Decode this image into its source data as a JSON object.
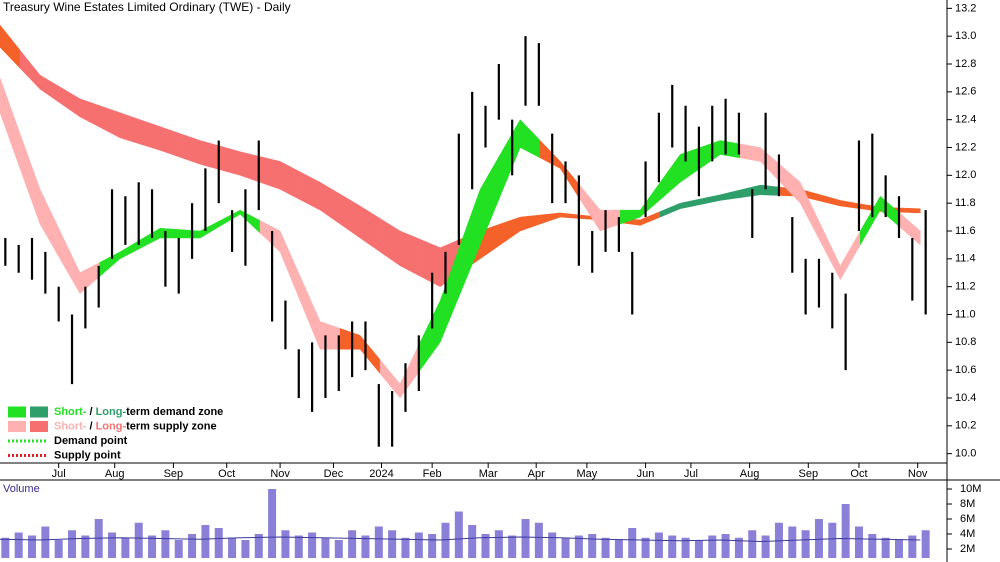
{
  "chart_data": {
    "type": "ohlc",
    "title": "Treasury Wine Estates Limited Ordinary (TWE) - Daily",
    "color": "#000000",
    "x": [
      2,
      7,
      12,
      17,
      22,
      27,
      32,
      37,
      42,
      47,
      52,
      57,
      62,
      67,
      72,
      77,
      82,
      87,
      92,
      97,
      102,
      107,
      112,
      117,
      122,
      127,
      132,
      137,
      142,
      147,
      152,
      157,
      162,
      167,
      172,
      177,
      182,
      187,
      192,
      197,
      202,
      207,
      212,
      217,
      222,
      227,
      232,
      237,
      242,
      247,
      252,
      257,
      262,
      267,
      272,
      277,
      282,
      287,
      292,
      297,
      302,
      307,
      312,
      317,
      322,
      327,
      332,
      337,
      342,
      347
    ],
    "high": [
      11.55,
      11.5,
      11.55,
      11.45,
      11.2,
      11.0,
      11.2,
      11.35,
      11.9,
      11.85,
      11.95,
      11.9,
      11.6,
      11.55,
      11.8,
      12.05,
      12.25,
      11.75,
      11.9,
      12.25,
      11.6,
      11.1,
      10.75,
      10.8,
      10.85,
      10.85,
      10.95,
      10.95,
      10.5,
      10.45,
      10.65,
      10.85,
      11.3,
      11.45,
      12.3,
      12.6,
      12.5,
      12.8,
      12.4,
      13.0,
      12.95,
      12.3,
      12.1,
      12.0,
      11.6,
      11.75,
      11.7,
      11.45,
      12.1,
      12.45,
      12.65,
      12.5,
      12.35,
      12.5,
      12.55,
      12.45,
      11.9,
      12.45,
      12.15,
      11.7,
      11.4,
      11.4,
      11.3,
      11.15,
      12.25,
      12.3,
      12.0,
      11.85,
      11.55,
      11.75
    ],
    "low": [
      11.35,
      11.3,
      11.25,
      11.15,
      10.95,
      10.5,
      10.9,
      11.05,
      11.4,
      11.5,
      11.5,
      11.55,
      11.2,
      11.15,
      11.4,
      11.6,
      11.8,
      11.45,
      11.35,
      11.75,
      10.95,
      10.75,
      10.4,
      10.3,
      10.4,
      10.45,
      10.55,
      10.6,
      10.05,
      10.05,
      10.3,
      10.45,
      10.9,
      11.15,
      11.5,
      11.9,
      12.2,
      12.4,
      12.0,
      12.5,
      12.5,
      11.8,
      11.8,
      11.35,
      11.3,
      11.45,
      11.45,
      11.0,
      11.7,
      11.95,
      12.2,
      12.1,
      11.85,
      12.1,
      12.15,
      12.15,
      11.55,
      11.9,
      11.85,
      11.3,
      11.0,
      11.05,
      10.9,
      10.6,
      11.6,
      11.7,
      11.7,
      11.55,
      11.1,
      11.0
    ],
    "xlim": [
      0,
      355
    ],
    "xticks": [
      {
        "value": 22,
        "label": "Jul"
      },
      {
        "value": 43,
        "label": "Aug"
      },
      {
        "value": 65,
        "label": "Sep"
      },
      {
        "value": 85,
        "label": "Oct"
      },
      {
        "value": 105,
        "label": "Nov"
      },
      {
        "value": 125,
        "label": "Dec"
      },
      {
        "value": 143,
        "label": "2024"
      },
      {
        "value": 162,
        "label": "Feb"
      },
      {
        "value": 183,
        "label": "Mar"
      },
      {
        "value": 201,
        "label": "Apr"
      },
      {
        "value": 220,
        "label": "May"
      },
      {
        "value": 242,
        "label": "Jun"
      },
      {
        "value": 259,
        "label": "Jul"
      },
      {
        "value": 281,
        "label": "Aug"
      },
      {
        "value": 303,
        "label": "Sep"
      },
      {
        "value": 322,
        "label": "Oct"
      },
      {
        "value": 344,
        "label": "Nov"
      }
    ],
    "ylim": [
      9.94,
      13.26
    ],
    "yticks": [
      {
        "value": 10,
        "label": "10.0"
      },
      10.2,
      10.4,
      10.6,
      10.8,
      {
        "value": 11,
        "label": "11.0"
      },
      11.2,
      11.4,
      11.6,
      11.8,
      {
        "value": 12,
        "label": "12.0"
      },
      12.2,
      12.4,
      12.6,
      12.8,
      {
        "value": 13,
        "label": "13.0"
      },
      13.2
    ],
    "bands": [
      {
        "x": [
          0,
          15,
          30,
          45,
          60,
          75,
          90,
          105,
          120,
          135,
          150,
          165,
          180,
          195,
          210,
          225,
          240,
          255,
          270,
          285,
          300,
          315,
          330,
          345
        ],
        "upper": [
          13.08,
          12.72,
          12.55,
          12.45,
          12.35,
          12.25,
          12.17,
          12.1,
          11.95,
          11.78,
          11.6,
          11.48,
          11.6,
          11.7,
          11.73,
          11.7,
          11.68,
          11.8,
          11.86,
          11.93,
          11.9,
          11.82,
          11.77,
          11.76
        ],
        "lower": [
          12.92,
          12.62,
          12.42,
          12.27,
          12.18,
          12.08,
          12.0,
          11.9,
          11.75,
          11.55,
          11.35,
          11.2,
          11.4,
          11.6,
          11.7,
          11.68,
          11.64,
          11.76,
          11.82,
          11.86,
          11.85,
          11.78,
          11.74,
          11.73
        ],
        "colors": [
          "#f4622a",
          "#f77070",
          "#f77070",
          "#f77070",
          "#f77070",
          "#f77070",
          "#f77070",
          "#f77070",
          "#f77070",
          "#f77070",
          "#f77070",
          "#f77070",
          "#f4622a",
          "#f4622a",
          "#f4622a",
          "#f4622a",
          "#f4622a",
          "#2e9e6a",
          "#2e9e6a",
          "#2e9e6a",
          "#f4622a",
          "#f4622a",
          "#f4622a",
          "#f4622a"
        ]
      },
      {
        "x": [
          0,
          15,
          30,
          45,
          60,
          75,
          90,
          105,
          120,
          135,
          150,
          165,
          180,
          195,
          210,
          225,
          240,
          255,
          270,
          285,
          300,
          315,
          330,
          345
        ],
        "upper": [
          12.7,
          11.9,
          11.3,
          11.45,
          11.62,
          11.6,
          11.75,
          11.6,
          10.95,
          10.85,
          10.5,
          11.1,
          11.9,
          12.4,
          12.1,
          11.75,
          11.75,
          12.15,
          12.25,
          12.2,
          11.95,
          11.35,
          11.85,
          11.6
        ],
        "lower": [
          12.45,
          11.65,
          11.15,
          11.4,
          11.55,
          11.55,
          11.72,
          11.45,
          10.75,
          10.75,
          10.4,
          10.8,
          11.5,
          12.2,
          12.05,
          11.6,
          11.7,
          11.95,
          12.15,
          12.1,
          11.8,
          11.25,
          11.75,
          11.5
        ],
        "colors": [
          "#ffb0b0",
          "#ffb0b0",
          "#ffb0b0",
          "#22e022",
          "#22e022",
          "#22e022",
          "#22e022",
          "#ffb0b0",
          "#ffb0b0",
          "#f4622a",
          "#ffb0b0",
          "#22e022",
          "#22e022",
          "#22e022",
          "#f4622a",
          "#ffb0b0",
          "#22e022",
          "#22e022",
          "#22e022",
          "#ffb0b0",
          "#ffb0b0",
          "#ffb0b0",
          "#22e022",
          "#ffb0b0"
        ]
      }
    ],
    "legend": [
      {
        "swatches": [
          "#22e022",
          "#2e9e6a"
        ],
        "parts": [
          {
            "text": "Short-",
            "color": "#22e022"
          },
          {
            "text": " / ",
            "color": "#000000"
          },
          {
            "text": "Long-",
            "color": "#2e9e6a"
          },
          {
            "text": "term demand zone",
            "color": "#000000"
          }
        ]
      },
      {
        "swatches": [
          "#ffb0b0",
          "#f77070"
        ],
        "parts": [
          {
            "text": "Short-",
            "color": "#ffb0b0"
          },
          {
            "text": " / ",
            "color": "#000000"
          },
          {
            "text": "Long-",
            "color": "#f77070"
          },
          {
            "text": "term supply zone",
            "color": "#000000"
          }
        ]
      },
      {
        "line": "#22e022",
        "parts": [
          {
            "text": "Demand point",
            "color": "#000000"
          }
        ]
      },
      {
        "line": "#e02020",
        "parts": [
          {
            "text": "Supply point",
            "color": "#000000"
          }
        ]
      }
    ],
    "volume": {
      "title": "Volume",
      "color": "#8a80d8",
      "ma_color": "#3b3b9a",
      "values": [
        3500000,
        4200000,
        3800000,
        5000000,
        3200000,
        4500000,
        3800000,
        6000000,
        4200000,
        3500000,
        5500000,
        3800000,
        4500000,
        3200000,
        4000000,
        5200000,
        4800000,
        3500000,
        3200000,
        4000000,
        10000000,
        4500000,
        3800000,
        4200000,
        3500000,
        3200000,
        4500000,
        3800000,
        5000000,
        4500000,
        3500000,
        4200000,
        4000000,
        5500000,
        7000000,
        5200000,
        4000000,
        4500000,
        3800000,
        6000000,
        5500000,
        4200000,
        3500000,
        3800000,
        4000000,
        3500000,
        3200000,
        4800000,
        3500000,
        4200000,
        3800000,
        3500000,
        3200000,
        3800000,
        4000000,
        3500000,
        4500000,
        3800000,
        5500000,
        5000000,
        4500000,
        6000000,
        5500000,
        8000000,
        5000000,
        4000000,
        3500000,
        3200000,
        3800000,
        4500000
      ],
      "ma_x": [
        0,
        15,
        30,
        45,
        60,
        75,
        90,
        105,
        120,
        135,
        150,
        165,
        180,
        195,
        210,
        225,
        240,
        255,
        270,
        285,
        300,
        315,
        330,
        345
      ],
      "ma": [
        3300000,
        3200000,
        3400000,
        3500000,
        3400000,
        3300000,
        3500000,
        3600000,
        3500000,
        3400000,
        3300000,
        3200000,
        3500000,
        3600000,
        3500000,
        3300000,
        3200000,
        3100000,
        3200000,
        3000000,
        3200000,
        3400000,
        3300000,
        3200000
      ],
      "ylim": [
        800000,
        11470000
      ],
      "yticks": [
        {
          "value": 2000000,
          "label": "2M"
        },
        {
          "value": 4000000,
          "label": "4M"
        },
        {
          "value": 6000000,
          "label": "6M"
        },
        {
          "value": 8000000,
          "label": "8M"
        },
        {
          "value": 10000000,
          "label": "10M"
        }
      ]
    }
  }
}
